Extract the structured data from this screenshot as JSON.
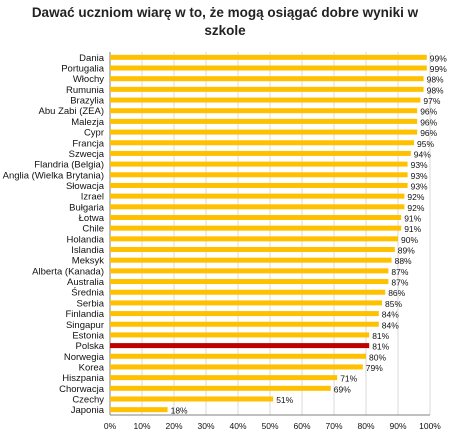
{
  "chart_data": {
    "type": "bar",
    "orientation": "horizontal",
    "title_lines": [
      "Dawać uczniom  wiarę w to, że mogą osiągać dobre wyniki w",
      "szkole"
    ],
    "categories": [
      "Dania",
      "Portugalia",
      "Włochy",
      "Rumunia",
      "Brazylia",
      "Abu Zabi (ZEA)",
      "Malezja",
      "Cypr",
      "Francja",
      "Szwecja",
      "Flandria (Belgia)",
      "Anglia (Wielka Brytania)",
      "Słowacja",
      "Izrael",
      "Bułgaria",
      "Łotwa",
      "Chile",
      "Holandia",
      "Islandia",
      "Meksyk",
      "Alberta (Kanada)",
      "Australia",
      "Średnia",
      "Serbia",
      "Finlandia",
      "Singapur",
      "Estonia",
      "Polska",
      "Norwegia",
      "Korea",
      "Hiszpania",
      "Chorwacja",
      "Czechy",
      "Japonia"
    ],
    "values": [
      99,
      99,
      98,
      98,
      97,
      96,
      96,
      96,
      95,
      94,
      93,
      93,
      93,
      92,
      92,
      91,
      91,
      90,
      89,
      88,
      87,
      87,
      86,
      85,
      84,
      84,
      81,
      81,
      80,
      79,
      71,
      69,
      51,
      18
    ],
    "value_labels": [
      "99%",
      "99%",
      "98%",
      "98%",
      "97%",
      "96%",
      "96%",
      "96%",
      "95%",
      "94%",
      "93%",
      "93%",
      "93%",
      "92%",
      "92%",
      "91%",
      "91%",
      "90%",
      "89%",
      "88%",
      "87%",
      "87%",
      "86%",
      "85%",
      "84%",
      "84%",
      "81%",
      "81%",
      "80%",
      "79%",
      "71%",
      "69%",
      "51%",
      "18%"
    ],
    "highlight": "Polska",
    "xlim": [
      0,
      100
    ],
    "xticks": [
      "0%",
      "10%",
      "20%",
      "30%",
      "40%",
      "50%",
      "60%",
      "70%",
      "80%",
      "90%",
      "100%"
    ],
    "grid": true,
    "legend": "none",
    "colors": {
      "bar": "#FFC000",
      "highlight": "#C00000",
      "grid": "#d9d9d9",
      "axis": "#808080"
    }
  }
}
